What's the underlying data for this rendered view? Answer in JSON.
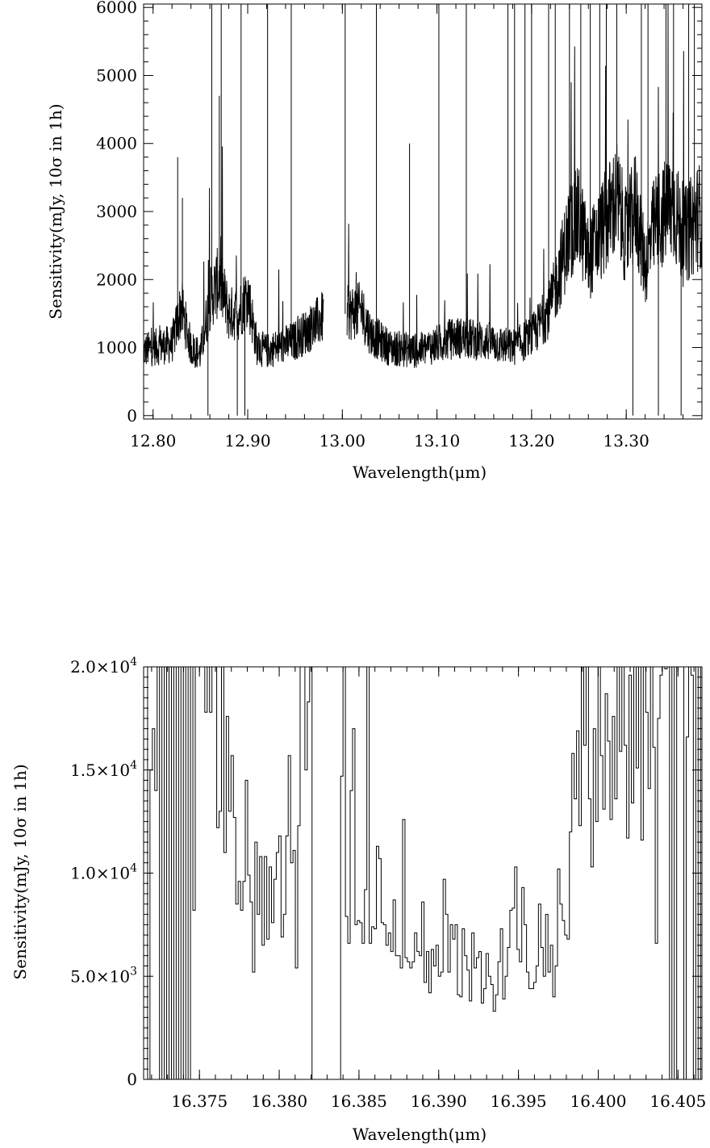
{
  "chart_data": [
    {
      "type": "line",
      "style": "spectrum",
      "xlabel": "Wavelength(μm)",
      "ylabel": "Sensitivity(mJy, 10σ in 1h)",
      "xlim": [
        12.79,
        13.38
      ],
      "ylim": [
        -50,
        6050
      ],
      "x_ticks": [
        {
          "value": 12.8,
          "label": "12.80"
        },
        {
          "value": 12.9,
          "label": "12.90"
        },
        {
          "value": 13.0,
          "label": "13.00"
        },
        {
          "value": 13.1,
          "label": "13.10"
        },
        {
          "value": 13.2,
          "label": "13.20"
        },
        {
          "value": 13.3,
          "label": "13.30"
        }
      ],
      "y_ticks": [
        {
          "value": 0,
          "label": "0"
        },
        {
          "value": 1000,
          "label": "1000"
        },
        {
          "value": 2000,
          "label": "2000"
        },
        {
          "value": 3000,
          "label": "3000"
        },
        {
          "value": 4000,
          "label": "4000"
        },
        {
          "value": 5000,
          "label": "5000"
        },
        {
          "value": 6000,
          "label": "6000"
        }
      ],
      "gap": [
        12.98,
        13.005
      ],
      "baseline": [
        [
          12.79,
          950
        ],
        [
          12.8,
          1000
        ],
        [
          12.82,
          1050
        ],
        [
          12.83,
          1600
        ],
        [
          12.84,
          1000
        ],
        [
          12.85,
          900
        ],
        [
          12.86,
          1700
        ],
        [
          12.87,
          2000
        ],
        [
          12.88,
          1500
        ],
        [
          12.89,
          1500
        ],
        [
          12.9,
          1800
        ],
        [
          12.91,
          1000
        ],
        [
          12.92,
          950
        ],
        [
          12.95,
          1100
        ],
        [
          12.98,
          1450
        ],
        [
          13.005,
          1500
        ],
        [
          13.02,
          1550
        ],
        [
          13.03,
          1200
        ],
        [
          13.05,
          1000
        ],
        [
          13.08,
          950
        ],
        [
          13.1,
          1050
        ],
        [
          13.12,
          1150
        ],
        [
          13.15,
          1100
        ],
        [
          13.18,
          1000
        ],
        [
          13.2,
          1150
        ],
        [
          13.22,
          1600
        ],
        [
          13.24,
          2700
        ],
        [
          13.25,
          2900
        ],
        [
          13.26,
          2300
        ],
        [
          13.28,
          2900
        ],
        [
          13.29,
          3200
        ],
        [
          13.3,
          2600
        ],
        [
          13.31,
          3100
        ],
        [
          13.32,
          2200
        ],
        [
          13.33,
          2800
        ],
        [
          13.35,
          3100
        ],
        [
          13.36,
          2600
        ],
        [
          13.37,
          2800
        ],
        [
          13.38,
          3000
        ]
      ],
      "spikes": [
        {
          "x": 12.826,
          "y": 3800
        },
        {
          "x": 12.831,
          "y": 3200
        },
        {
          "x": 12.858,
          "y": 0
        },
        {
          "x": 12.862,
          "y": 6050
        },
        {
          "x": 12.87,
          "y": 4700
        },
        {
          "x": 12.872,
          "y": 6050
        },
        {
          "x": 12.889,
          "y": 0
        },
        {
          "x": 12.893,
          "y": 6050
        },
        {
          "x": 12.897,
          "y": 0
        },
        {
          "x": 12.921,
          "y": 6050
        },
        {
          "x": 12.946,
          "y": 6050
        },
        {
          "x": 13.003,
          "y": 6050
        },
        {
          "x": 13.036,
          "y": 6050
        },
        {
          "x": 13.071,
          "y": 4000
        },
        {
          "x": 13.102,
          "y": 6050
        },
        {
          "x": 13.131,
          "y": 6050
        },
        {
          "x": 13.175,
          "y": 6050
        },
        {
          "x": 13.182,
          "y": 6050
        },
        {
          "x": 13.193,
          "y": 6050
        },
        {
          "x": 13.2,
          "y": 6050
        },
        {
          "x": 13.218,
          "y": 6050
        },
        {
          "x": 13.225,
          "y": 6050
        },
        {
          "x": 13.24,
          "y": 6050
        },
        {
          "x": 13.252,
          "y": 6050
        },
        {
          "x": 13.262,
          "y": 6050
        },
        {
          "x": 13.272,
          "y": 6050
        },
        {
          "x": 13.279,
          "y": 6050
        },
        {
          "x": 13.29,
          "y": 6050
        },
        {
          "x": 13.307,
          "y": 0
        },
        {
          "x": 13.316,
          "y": 6050
        },
        {
          "x": 13.323,
          "y": 6050
        },
        {
          "x": 13.334,
          "y": 0
        },
        {
          "x": 13.342,
          "y": 6050
        },
        {
          "x": 13.35,
          "y": 6050
        },
        {
          "x": 13.358,
          "y": 0
        },
        {
          "x": 13.366,
          "y": 6050
        },
        {
          "x": 13.372,
          "y": 6050
        }
      ]
    },
    {
      "type": "line",
      "style": "histogram",
      "xlabel": "Wavelength(μm)",
      "ylabel": "Sensitivity(mJy, 10σ in 1h)",
      "xlim": [
        16.3715,
        16.4065
      ],
      "ylim": [
        0,
        20000
      ],
      "x_ticks": [
        {
          "value": 16.375,
          "label": "16.375"
        },
        {
          "value": 16.38,
          "label": "16.380"
        },
        {
          "value": 16.385,
          "label": "16.385"
        },
        {
          "value": 16.39,
          "label": "16.390"
        },
        {
          "value": 16.395,
          "label": "16.395"
        },
        {
          "value": 16.4,
          "label": "16.400"
        },
        {
          "value": 16.405,
          "label": "16.405"
        }
      ],
      "y_ticks": [
        {
          "value": 0,
          "label": "0",
          "exp": ""
        },
        {
          "value": 5000,
          "label": "5.0×10",
          "exp": "3"
        },
        {
          "value": 10000,
          "label": "1.0×10",
          "exp": "4"
        },
        {
          "value": 15000,
          "label": "1.5×10",
          "exp": "4"
        },
        {
          "value": 20000,
          "label": "2.0×10",
          "exp": "4"
        }
      ],
      "x_start": 16.3716,
      "x_step": 0.0001494,
      "values": [
        20000,
        0,
        15000,
        17000,
        14000,
        20000,
        0,
        20000,
        0,
        20000,
        0,
        20000,
        0,
        20000,
        0,
        20000,
        0,
        20000,
        0,
        20000,
        8200,
        20000,
        20000,
        20000,
        20000,
        17800,
        20000,
        17800,
        20000,
        20000,
        12200,
        13000,
        20000,
        11000,
        17600,
        13000,
        15700,
        12700,
        8500,
        9600,
        8200,
        9600,
        14500,
        9900,
        8600,
        5200,
        11500,
        8000,
        10800,
        6500,
        10800,
        6800,
        10300,
        7600,
        9700,
        11000,
        11800,
        6900,
        8000,
        11800,
        15700,
        10500,
        11100,
        5400,
        12300,
        20000,
        20000,
        15000,
        18300,
        20000,
        0,
        0,
        0,
        0,
        0,
        0,
        0,
        0,
        0,
        0,
        0,
        0,
        14700,
        20000,
        7900,
        6600,
        14000,
        17000,
        7500,
        7700,
        7600,
        6600,
        9200,
        20000,
        6600,
        7400,
        7300,
        11300,
        10700,
        7600,
        7500,
        6500,
        7100,
        6200,
        8700,
        6000,
        6000,
        5400,
        12600,
        5900,
        5700,
        5400,
        5700,
        7100,
        6200,
        6000,
        8600,
        4700,
        6200,
        4200,
        6300,
        5500,
        6500,
        5000,
        5200,
        9700,
        8000,
        5200,
        7500,
        6800,
        7500,
        4100,
        4000,
        7300,
        6000,
        5300,
        3800,
        7100,
        5400,
        5900,
        6200,
        3700,
        4400,
        6100,
        5000,
        4600,
        3300,
        4100,
        5700,
        7300,
        3900,
        5000,
        6400,
        8200,
        8300,
        10300,
        6300,
        5700,
        9300,
        7500,
        5200,
        4400,
        4400,
        4700,
        5500,
        8500,
        6400,
        5000,
        8000,
        5200,
        6500,
        4000,
        5500,
        10200,
        8500,
        7700,
        7000,
        6800,
        12000,
        15800,
        13600,
        16900,
        12300,
        20000,
        16200,
        20000,
        13600,
        10300,
        17000,
        12500,
        20000,
        15700,
        13100,
        18700,
        16400,
        12600,
        17600,
        13600,
        20000,
        15900,
        20000,
        16200,
        11700,
        19600,
        13400,
        20000,
        15100,
        20000,
        11600,
        20000,
        17800,
        14100,
        20000,
        16100,
        6600,
        17500,
        19600,
        20000,
        19900,
        20000,
        0,
        20000,
        0,
        20000,
        20000,
        20000,
        0,
        16600,
        20000,
        19600,
        0,
        20000,
        0,
        20000,
        0,
        20000,
        0,
        20000,
        0,
        20000,
        0,
        20000,
        0
      ]
    }
  ]
}
